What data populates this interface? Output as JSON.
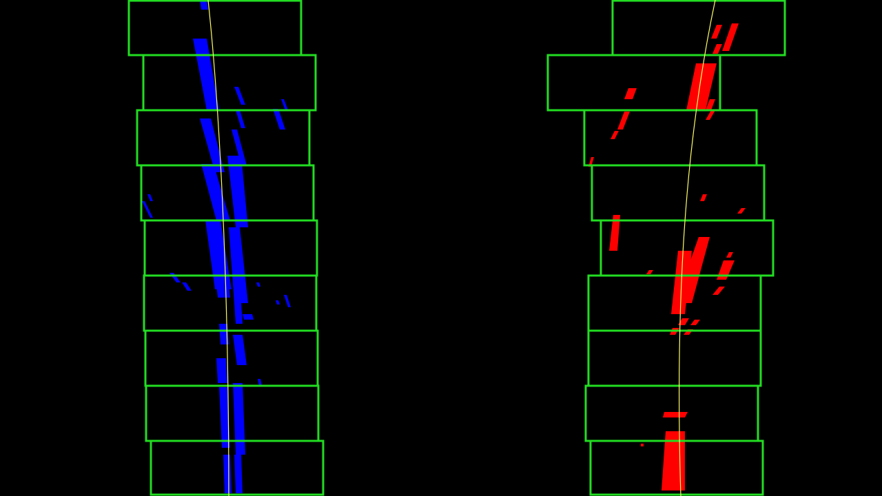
{
  "view": {
    "description_label": "",
    "colors": {
      "background": "#000000",
      "window_outline": "#22dd22",
      "left_lane_pixels": "#0000ff",
      "right_lane_pixels": "#ff0000",
      "polyfit_line": "#ffff66"
    },
    "sliding_windows": {
      "count_per_lane": 9,
      "window_height_fraction": 0.1111
    }
  }
}
